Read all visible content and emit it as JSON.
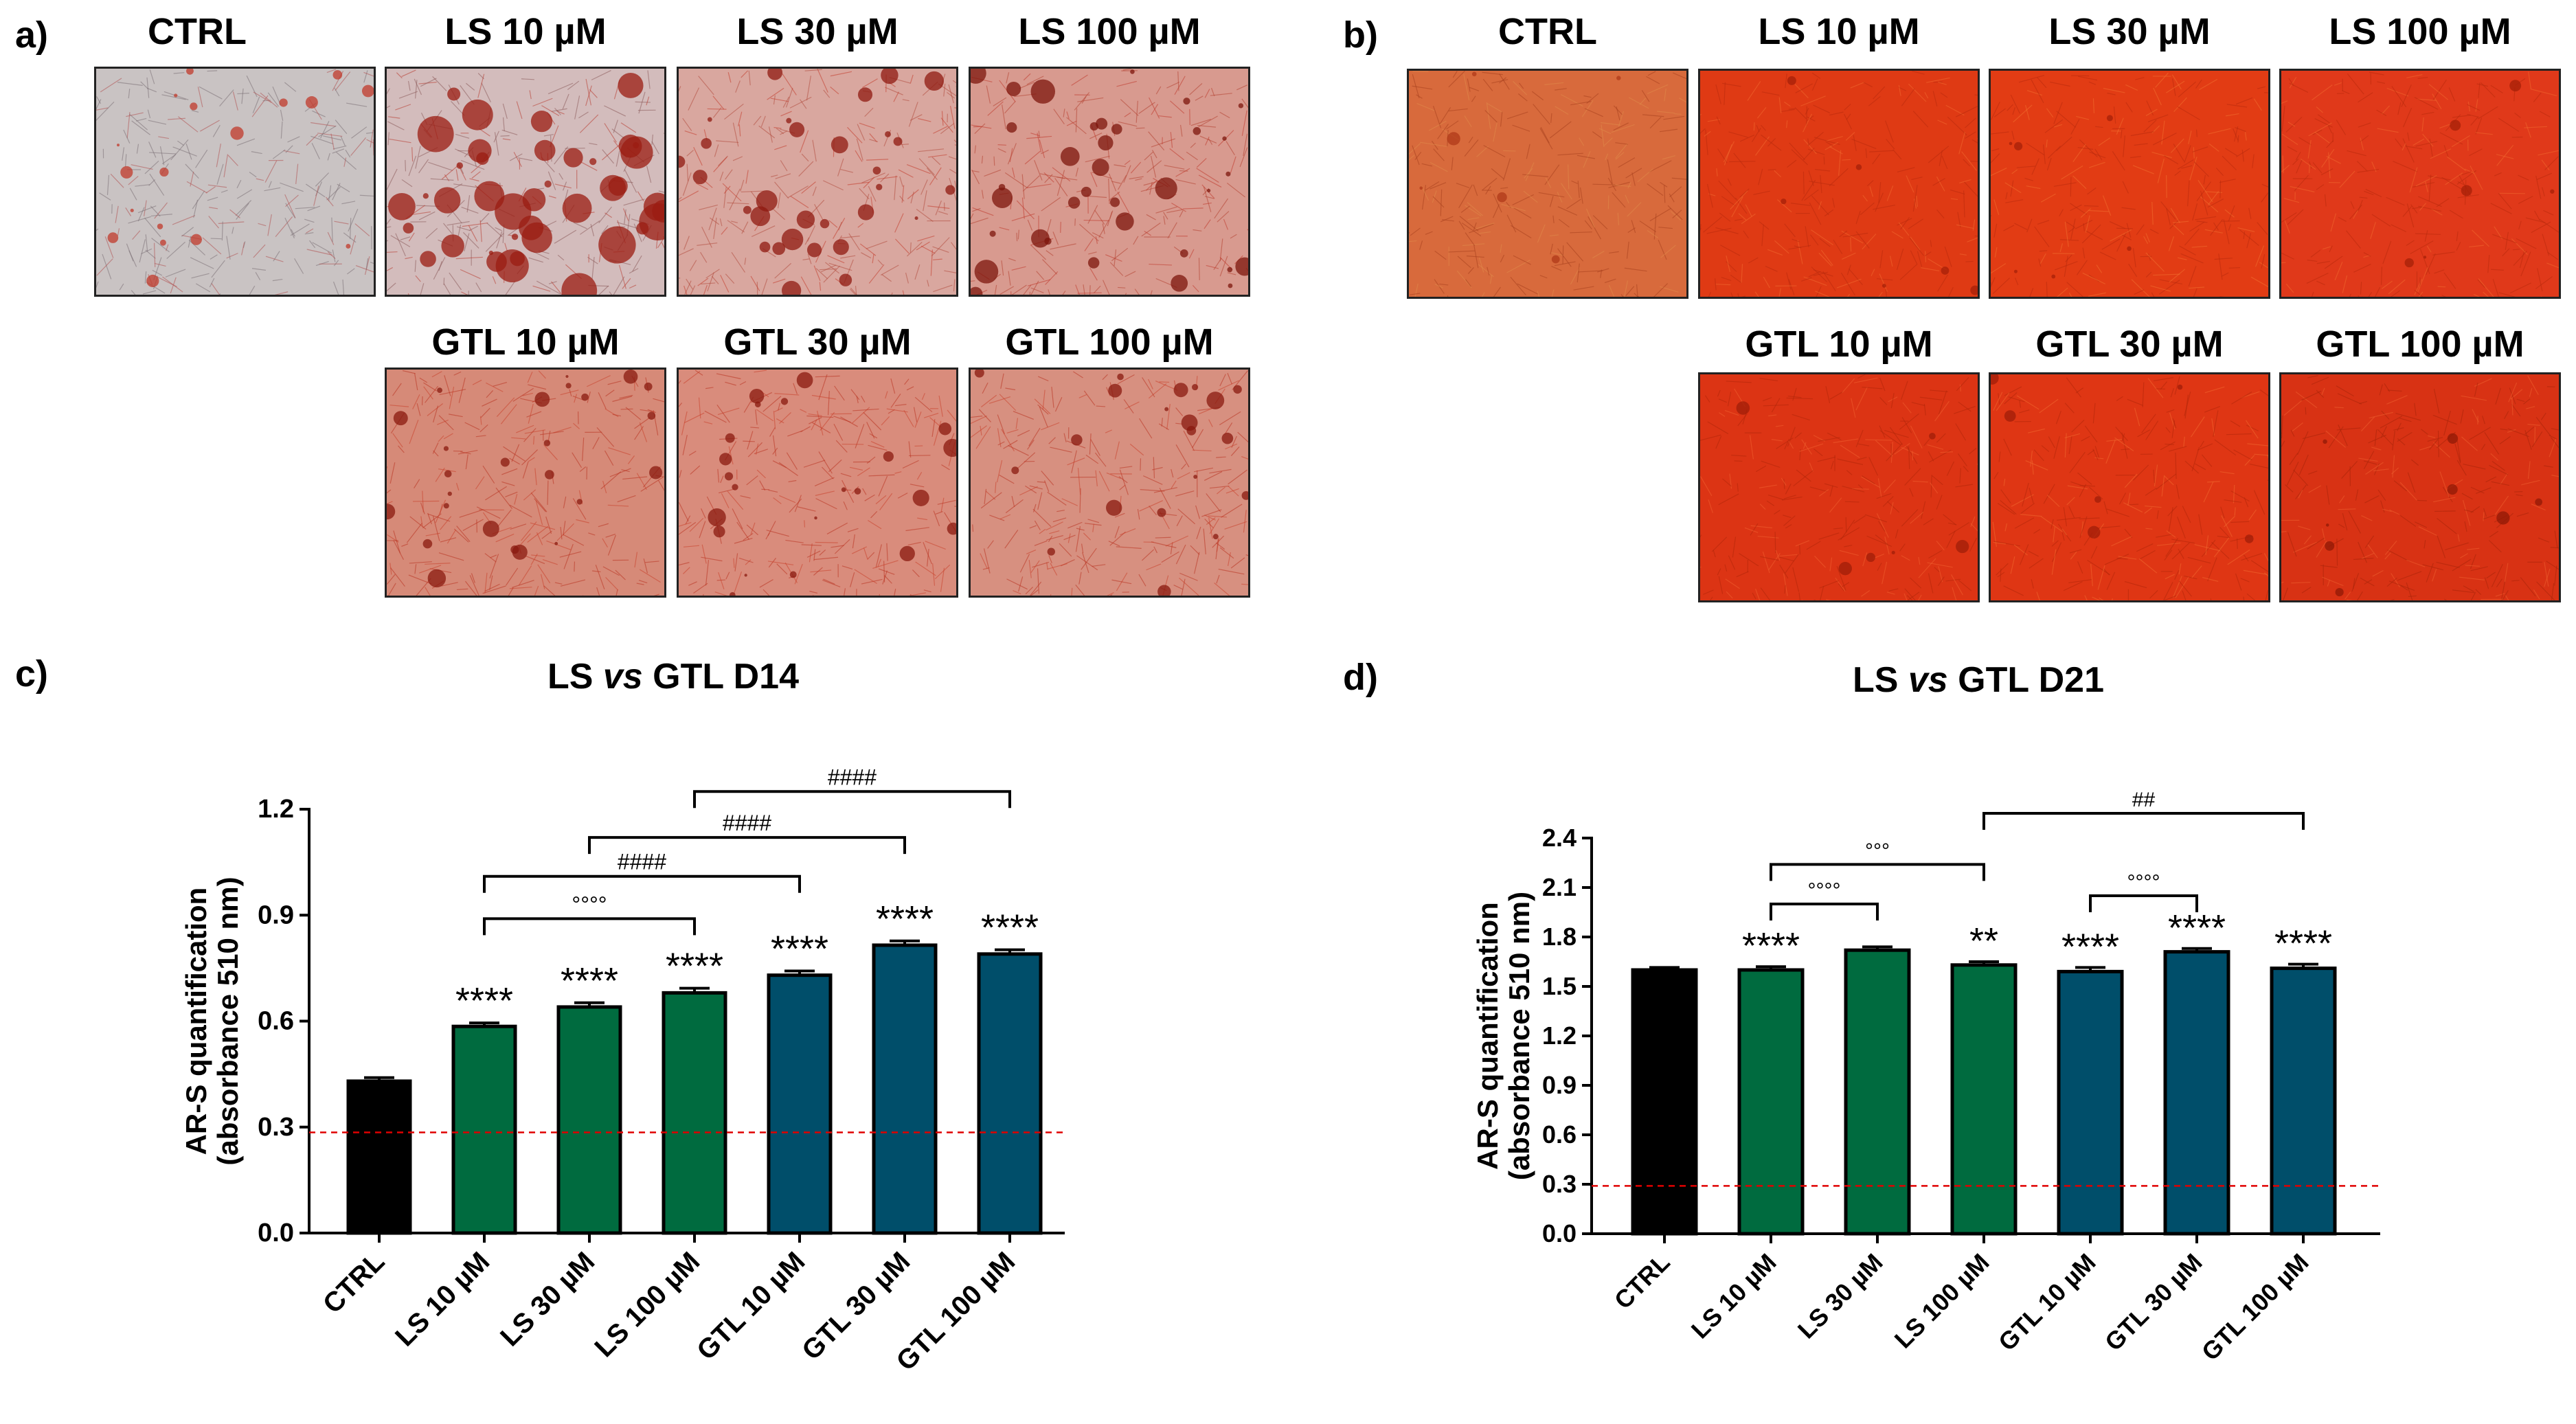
{
  "panels": {
    "a": {
      "letter": "a)",
      "top_row": [
        {
          "label": "CTRL",
          "stain": "light"
        },
        {
          "label": "LS 10 µM",
          "stain": "nodular"
        },
        {
          "label": "LS 30 µM",
          "stain": "medium"
        },
        {
          "label": "LS 100 µM",
          "stain": "medium-nodular"
        }
      ],
      "bottom_row": [
        {
          "label": "GTL 10 µM",
          "stain": "dense"
        },
        {
          "label": "GTL 30 µM",
          "stain": "dense"
        },
        {
          "label": "GTL 100 µM",
          "stain": "dense"
        }
      ]
    },
    "b": {
      "letter": "b)",
      "top_row": [
        {
          "label": "CTRL",
          "stain": "orange"
        },
        {
          "label": "LS 10 µM",
          "stain": "red"
        },
        {
          "label": "LS 30 µM",
          "stain": "red"
        },
        {
          "label": "LS 100 µM",
          "stain": "red"
        }
      ],
      "bottom_row": [
        {
          "label": "GTL 10 µM",
          "stain": "red"
        },
        {
          "label": "GTL 30 µM",
          "stain": "red"
        },
        {
          "label": "GTL 100 µM",
          "stain": "red"
        }
      ]
    },
    "c": {
      "letter": "c)"
    },
    "d": {
      "letter": "d)"
    }
  },
  "colors": {
    "ctrl": "#000000",
    "ls": "#006B3F",
    "gtl": "#004E6A",
    "threshold": "#E00000"
  },
  "chart_data": [
    {
      "id": "c",
      "type": "bar",
      "title_pre": "LS ",
      "title_em": "vs",
      "title_post": " GTL D14",
      "ylabel_line1": "AR-S quantification",
      "ylabel_line2": "(absorbance 510 nm)",
      "ylim": [
        0,
        1.2
      ],
      "yticks": [
        "0.0",
        "0.3",
        "0.6",
        "0.9",
        "1.2"
      ],
      "categories": [
        "CTRL",
        "LS 10 µM",
        "LS 30 µM",
        "LS 100 µM",
        "GTL 10 µM",
        "GTL 30 µM",
        "GTL 100 µM"
      ],
      "groups": [
        "ctrl",
        "ls",
        "ls",
        "ls",
        "gtl",
        "gtl",
        "gtl"
      ],
      "values": [
        0.43,
        0.585,
        0.64,
        0.68,
        0.73,
        0.815,
        0.79
      ],
      "errors": [
        0.01,
        0.01,
        0.012,
        0.013,
        0.012,
        0.012,
        0.012
      ],
      "significance": [
        "",
        "****",
        "****",
        "****",
        "****",
        "****",
        "****"
      ],
      "threshold": 0.285,
      "brackets": [
        {
          "from": 1,
          "to": 3,
          "y": 0.89,
          "label": "°°°°"
        },
        {
          "from": 1,
          "to": 4,
          "y": 1.01,
          "label": "####"
        },
        {
          "from": 2,
          "to": 5,
          "y": 1.12,
          "label": "####"
        },
        {
          "from": 3,
          "to": 6,
          "y": 1.25,
          "label": "####"
        }
      ]
    },
    {
      "id": "d",
      "type": "bar",
      "title_pre": "LS ",
      "title_em": "vs",
      "title_post": " GTL D21",
      "ylabel_line1": "AR-S quantification",
      "ylabel_line2": "(absorbance 510 nm)",
      "ylim": [
        0,
        2.4
      ],
      "yticks": [
        "0.0",
        "0.3",
        "0.6",
        "0.9",
        "1.2",
        "1.5",
        "1.8",
        "2.1",
        "2.4"
      ],
      "categories": [
        "CTRL",
        "LS 10 µM",
        "LS 30 µM",
        "LS 100 µM",
        "GTL 10 µM",
        "GTL 30 µM",
        "GTL 100 µM"
      ],
      "groups": [
        "ctrl",
        "ls",
        "ls",
        "ls",
        "gtl",
        "gtl",
        "gtl"
      ],
      "values": [
        1.6,
        1.6,
        1.72,
        1.63,
        1.59,
        1.71,
        1.61
      ],
      "errors": [
        0.015,
        0.02,
        0.02,
        0.02,
        0.025,
        0.02,
        0.025
      ],
      "significance": [
        "",
        "****",
        "",
        "**",
        "****",
        "****",
        "****"
      ],
      "threshold": 0.29,
      "brackets": [
        {
          "from": 1,
          "to": 2,
          "y": 2.0,
          "label": "°°°°"
        },
        {
          "from": 1,
          "to": 3,
          "y": 2.24,
          "label": "°°°"
        },
        {
          "from": 5,
          "to": 5,
          "y": 2.05,
          "label": "°°°°",
          "from_sub": 4
        },
        {
          "from": 3,
          "to": 6,
          "y": 2.55,
          "label": "##"
        }
      ]
    }
  ]
}
